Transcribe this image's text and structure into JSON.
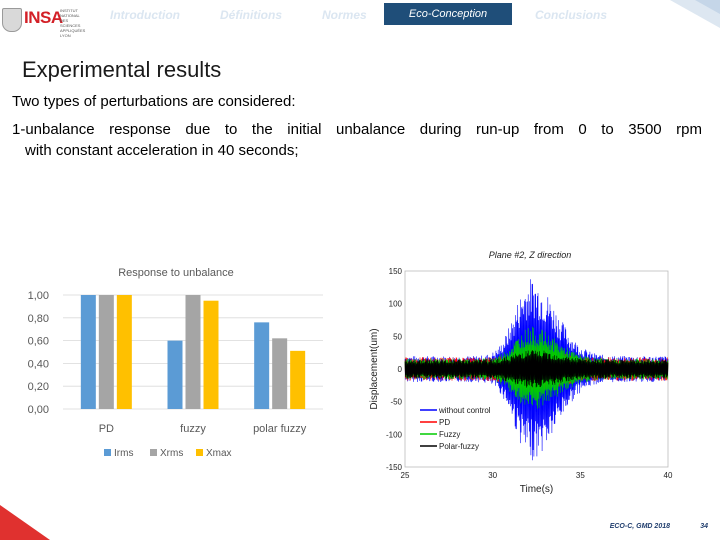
{
  "nav": {
    "items": [
      "Introduction",
      "Définitions",
      "Normes",
      "Eco-Conception",
      "Conclusions"
    ],
    "active": "Eco-Conception"
  },
  "logo": {
    "name": "INSA",
    "caption": "INSTITUT NATIONAL DES SCIENCES APPLIQUÉES LYON"
  },
  "slide": {
    "title": "Experimental results",
    "line1": "Two types of perturbations are considered:",
    "line2": "1-unbalance response due to the initial unbalance during run-up from 0 to 3500 rpm",
    "line3": "with constant acceleration in 40 seconds;"
  },
  "chart_data": [
    {
      "type": "bar",
      "title": "Response to unbalance",
      "categories": [
        "PD",
        "fuzzy",
        "polar fuzzy"
      ],
      "series": [
        {
          "name": "Irms",
          "color": "#5b9bd5",
          "values": [
            1.0,
            0.6,
            0.76
          ]
        },
        {
          "name": "Xrms",
          "color": "#a5a5a5",
          "values": [
            1.0,
            1.0,
            0.62
          ]
        },
        {
          "name": "Xmax",
          "color": "#ffc000",
          "values": [
            1.0,
            0.95,
            0.51
          ]
        }
      ],
      "yticks": [
        "1,00",
        "0,80",
        "0,60",
        "0,40",
        "0,20",
        "0,00"
      ],
      "ylim": [
        0,
        1.0
      ],
      "legend": "bottom"
    },
    {
      "type": "line",
      "title": "Plane #2, Z direction",
      "xlabel": "Time(s)",
      "ylabel": "Displacement(um)",
      "xlim": [
        25,
        40
      ],
      "ylim": [
        -150,
        150
      ],
      "xticks": [
        25,
        30,
        35,
        40
      ],
      "yticks": [
        150,
        100,
        50,
        0,
        -50,
        -100,
        -150
      ],
      "peak_time_s": 32.2,
      "series": [
        {
          "name": "without control",
          "color": "#0000ff",
          "base_amplitude": 20,
          "peak_amplitude": 140
        },
        {
          "name": "PD",
          "color": "#ff0000",
          "base_amplitude": 18,
          "peak_amplitude": 35
        },
        {
          "name": "Fuzzy",
          "color": "#00cc00",
          "base_amplitude": 16,
          "peak_amplitude": 65
        },
        {
          "name": "Polar-fuzzy",
          "color": "#000000",
          "base_amplitude": 15,
          "peak_amplitude": 30
        }
      ],
      "legend": "bottom-left"
    }
  ],
  "footer": {
    "text": "ECO-C, GMD 2018",
    "page": "34"
  }
}
